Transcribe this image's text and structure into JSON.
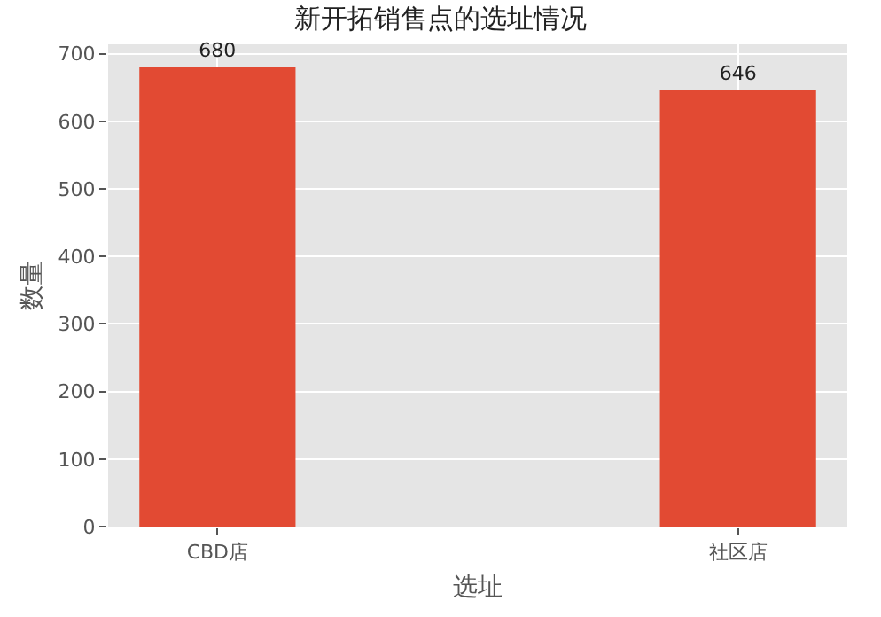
{
  "chart_data": {
    "type": "bar",
    "title": "新开拓销售点的选址情况",
    "xlabel": "选址",
    "ylabel": "数量",
    "categories": [
      "CBD店",
      "社区店"
    ],
    "values": [
      680,
      646
    ],
    "color": "#e24a33",
    "ylim": [
      0,
      714
    ],
    "yticks": [
      0,
      100,
      200,
      300,
      400,
      500,
      600,
      700
    ],
    "grid": true,
    "data_labels": true
  }
}
